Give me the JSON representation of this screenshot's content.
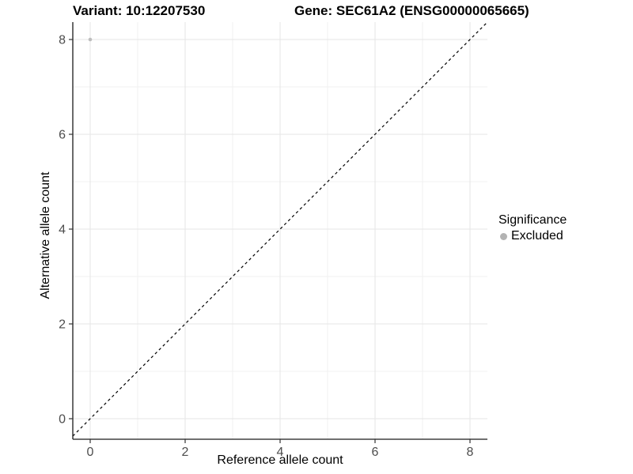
{
  "titles": {
    "variant": "Variant: 10:12207530",
    "gene": "Gene: SEC61A2 (ENSG00000065665)"
  },
  "legend": {
    "title": "Significance",
    "items": [
      {
        "label": "Excluded",
        "color": "#b3b3b3"
      }
    ]
  },
  "colors": {
    "background": "#ffffff",
    "axis_line": "#1a1a1a",
    "tick_mark": "#333333",
    "tick_label": "#4d4d4d",
    "grid_major": "#e5e5e5",
    "grid_minor": "#f0f0f0",
    "identity_line": "#000000",
    "point": "#bdbdbd"
  },
  "chart_data": {
    "type": "scatter",
    "title": "Variant: 10:12207530",
    "secondary_title": "Gene: SEC61A2 (ENSG00000065665)",
    "xlabel": "Reference allele count",
    "ylabel": "Alternative allele count",
    "xlim": [
      -0.3667,
      8.3667
    ],
    "ylim": [
      -0.4333,
      8.3667
    ],
    "x_ticks": [
      0,
      2,
      4,
      6,
      8
    ],
    "y_ticks": [
      0,
      2,
      4,
      6,
      8
    ],
    "x_minor": [
      1,
      3,
      5,
      7
    ],
    "y_minor": [
      1,
      3,
      5,
      7
    ],
    "grid": true,
    "legend_position": "right",
    "series": [
      {
        "name": "Excluded",
        "color": "#bdbdbd",
        "points": [
          {
            "x": 0,
            "y": 8
          }
        ]
      }
    ],
    "reference_line": {
      "equation": "y = x",
      "style": "dashed",
      "color": "#000000"
    }
  }
}
